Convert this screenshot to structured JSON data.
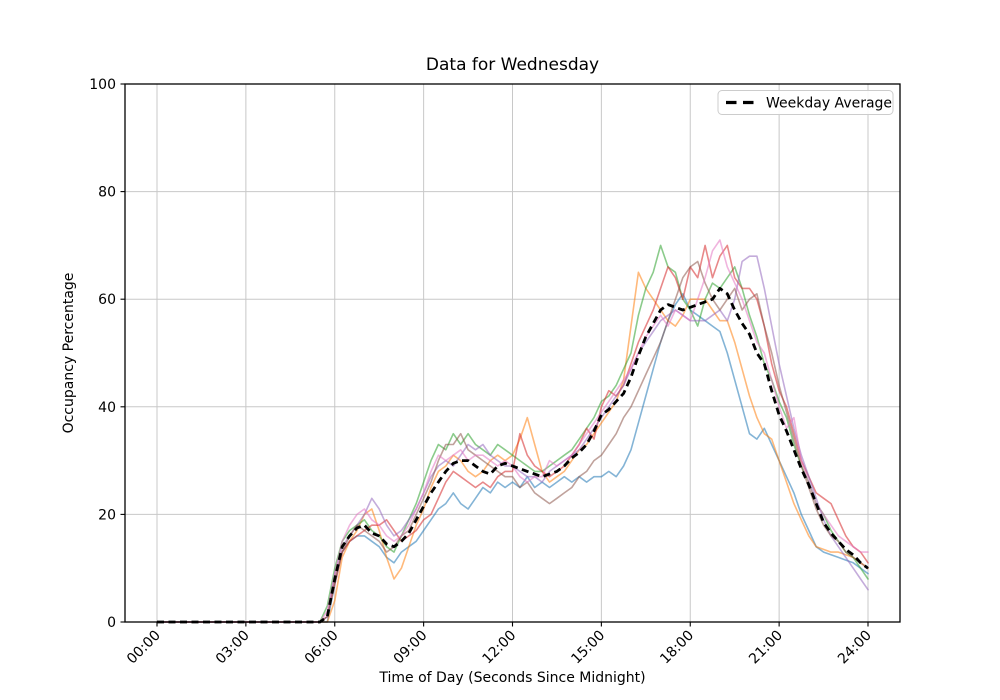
{
  "chart_data": {
    "type": "line",
    "title": "Data for Wednesday",
    "xlabel": "Time of Day (Seconds Since Midnight)",
    "ylabel": "Occupancy Percentage",
    "grid": true,
    "legend_position": "upper right",
    "xlim_hours": [
      0,
      24
    ],
    "ylim": [
      0,
      100
    ],
    "xtick_hours": [
      0,
      3,
      6,
      9,
      12,
      15,
      18,
      21,
      24
    ],
    "xtick_labels": [
      "00:00",
      "03:00",
      "06:00",
      "09:00",
      "12:00",
      "15:00",
      "18:00",
      "21:00",
      "24:00"
    ],
    "ytick_values": [
      0,
      20,
      40,
      60,
      80,
      100
    ],
    "ytick_labels": [
      "0",
      "20",
      "40",
      "60",
      "80",
      "100"
    ],
    "x_start_hours": 0,
    "x_step_hours": 0.25,
    "series_alpha": 0.55,
    "series": [
      {
        "id": "wednesday-blue",
        "color": "#1f77b4",
        "values": [
          0,
          0,
          0,
          0,
          0,
          0,
          0,
          0,
          0,
          0,
          0,
          0,
          0,
          0,
          0,
          0,
          0,
          0,
          0,
          0,
          0,
          0,
          0,
          0,
          7,
          13,
          15,
          16,
          16,
          15,
          14,
          12,
          11,
          13,
          14,
          15,
          17,
          19,
          21,
          22,
          24,
          22,
          21,
          23,
          25,
          24,
          26,
          25,
          26,
          25,
          27,
          25,
          26,
          25,
          26,
          27,
          26,
          27,
          26,
          27,
          27,
          28,
          27,
          29,
          32,
          37,
          42,
          47,
          52,
          56,
          59,
          61,
          58,
          57,
          56,
          55,
          54,
          50,
          45,
          40,
          35,
          34,
          36,
          33,
          30,
          27,
          24,
          20,
          17,
          14,
          13,
          12.5,
          12,
          11.5,
          11,
          10,
          9
        ]
      },
      {
        "id": "wednesday-orange",
        "color": "#ff7f0e",
        "values": [
          0,
          0,
          0,
          0,
          0,
          0,
          0,
          0,
          0,
          0,
          0,
          0,
          0,
          0,
          0,
          0,
          0,
          0,
          0,
          0,
          0,
          0,
          0,
          0,
          4,
          12,
          15,
          17,
          20,
          21,
          17,
          12,
          8,
          10,
          14,
          18,
          21,
          25,
          28,
          29,
          31,
          30,
          28,
          27,
          28,
          30,
          31,
          30,
          31,
          34,
          38,
          33,
          28,
          26,
          27,
          28,
          30,
          32,
          33,
          35,
          37,
          39,
          41,
          45,
          55,
          65,
          62,
          60,
          58,
          56,
          55,
          57,
          60,
          60,
          60,
          58,
          56,
          56,
          52,
          47,
          42,
          38,
          35,
          34,
          30,
          26,
          22,
          19,
          16,
          14,
          13.5,
          13,
          13,
          12.5,
          12,
          11,
          10
        ]
      },
      {
        "id": "wednesday-green",
        "color": "#2ca02c",
        "values": [
          0,
          0,
          0,
          0,
          0,
          0,
          0,
          0,
          0,
          0,
          0,
          0,
          0,
          0,
          0,
          0,
          0,
          0,
          0,
          0,
          0,
          0,
          0,
          3,
          10,
          15,
          17,
          18,
          19,
          17,
          16,
          14,
          13,
          16,
          19,
          22,
          26,
          30,
          33,
          32,
          35,
          33,
          35,
          33,
          32,
          31,
          33,
          32,
          31,
          30,
          29,
          28,
          28,
          29,
          30,
          31,
          32,
          34,
          36,
          38,
          41,
          42,
          44,
          47,
          50,
          57,
          62,
          65,
          70,
          66,
          65,
          60,
          58,
          55,
          60,
          63,
          62,
          64,
          66,
          62,
          57,
          53,
          48,
          45,
          41,
          38,
          33,
          29,
          26,
          22,
          20,
          17,
          15,
          13,
          12,
          10,
          8
        ]
      },
      {
        "id": "wednesday-red",
        "color": "#d62728",
        "values": [
          0,
          0,
          0,
          0,
          0,
          0,
          0,
          0,
          0,
          0,
          0,
          0,
          0,
          0,
          0,
          0,
          0,
          0,
          0,
          0,
          0,
          0,
          0,
          1,
          7,
          13,
          15,
          16,
          17,
          18,
          18,
          19,
          17,
          15,
          16,
          17,
          19,
          20,
          23,
          26,
          28,
          27,
          26,
          25,
          26,
          25,
          27,
          28,
          28,
          35,
          31,
          29,
          28,
          27,
          28,
          29,
          31,
          33,
          36,
          34,
          40,
          43,
          42,
          44,
          48,
          52,
          55,
          58,
          62,
          66,
          64,
          60,
          66,
          64,
          70,
          64,
          68,
          70,
          64,
          62,
          62,
          60,
          55,
          48,
          43,
          40,
          35,
          30,
          27,
          24,
          23,
          22,
          19,
          16,
          14,
          13,
          11
        ]
      },
      {
        "id": "wednesday-purple",
        "color": "#9467bd",
        "values": [
          0,
          0,
          0,
          0,
          0,
          0,
          0,
          0,
          0,
          0,
          0,
          0,
          0,
          0,
          0,
          0,
          0,
          0,
          0,
          0,
          0,
          0,
          0,
          1,
          9,
          14,
          16,
          18,
          20,
          23,
          21,
          18,
          16,
          17,
          19,
          21,
          24,
          27,
          29,
          30,
          29,
          31,
          33,
          32,
          33,
          31,
          30,
          29,
          29,
          28,
          27,
          27,
          26,
          28,
          29,
          30,
          31,
          32,
          34,
          36,
          38,
          40,
          42,
          44,
          47,
          50,
          52,
          54,
          56,
          57,
          58,
          57,
          56,
          56,
          56,
          57,
          58,
          56,
          60,
          67,
          68,
          68,
          62,
          55,
          48,
          42,
          36,
          31,
          27,
          23,
          19,
          16,
          14,
          12,
          10,
          8,
          6
        ]
      },
      {
        "id": "wednesday-brown",
        "color": "#8c564b",
        "values": [
          0,
          0,
          0,
          0,
          0,
          0,
          0,
          0,
          0,
          0,
          0,
          0,
          0,
          0,
          0,
          0,
          0,
          0,
          0,
          0,
          0,
          0,
          0,
          1,
          8,
          13,
          16,
          18,
          17,
          16,
          15,
          13,
          14,
          16,
          17,
          20,
          23,
          26,
          30,
          33,
          33,
          35,
          32,
          31,
          30,
          29,
          28,
          27,
          27,
          25,
          26,
          24,
          23,
          22,
          23,
          24,
          25,
          27,
          28,
          30,
          31,
          33,
          35,
          38,
          40,
          43,
          46,
          49,
          52,
          56,
          60,
          64,
          66,
          67,
          63,
          60,
          58,
          60,
          62,
          58,
          60,
          61,
          55,
          50,
          44,
          39,
          34,
          29,
          25,
          21,
          18,
          16,
          15,
          13,
          12,
          11,
          10
        ]
      },
      {
        "id": "wednesday-pink",
        "color": "#e377c2",
        "values": [
          0,
          0,
          0,
          0,
          0,
          0,
          0,
          0,
          0,
          0,
          0,
          0,
          0,
          0,
          0,
          0,
          0,
          0,
          0,
          0,
          0,
          0,
          0,
          2,
          9,
          15,
          18,
          20,
          21,
          19,
          18,
          16,
          15,
          16,
          18,
          21,
          24,
          28,
          31,
          30,
          31,
          32,
          30,
          31,
          31,
          30,
          29,
          30,
          29,
          27,
          26,
          27,
          27,
          30,
          29,
          30,
          31,
          33,
          35,
          37,
          39,
          41,
          43,
          45,
          47,
          50,
          53,
          55,
          57,
          55,
          58,
          57,
          56,
          60,
          64,
          69,
          71,
          66,
          63,
          60,
          56,
          52,
          50,
          45,
          40,
          36,
          38,
          30,
          26,
          22,
          20,
          18,
          16,
          15,
          14,
          13,
          13
        ]
      }
    ],
    "average": {
      "label": "Weekday Average",
      "color": "#000000",
      "dash": [
        7,
        4.5
      ],
      "values": [
        0,
        0,
        0,
        0,
        0,
        0,
        0,
        0,
        0,
        0,
        0,
        0,
        0,
        0,
        0,
        0,
        0,
        0,
        0,
        0,
        0,
        0,
        0,
        1,
        8,
        14,
        16,
        17.5,
        18,
        16.5,
        16,
        14.5,
        14,
        15,
        16.5,
        19,
        21.5,
        24,
        26,
        28,
        29.5,
        30,
        30,
        29,
        28,
        27.5,
        29,
        29.5,
        29,
        28.5,
        28,
        27.5,
        27,
        27.5,
        28,
        29,
        30.5,
        31.5,
        33,
        35.5,
        38.5,
        39.5,
        41,
        42.5,
        45.5,
        49.5,
        53,
        55.5,
        58,
        59,
        58.5,
        58,
        58.5,
        59,
        59.5,
        60,
        62,
        61,
        58,
        55.5,
        53.5,
        50,
        48,
        43,
        38.5,
        35.5,
        32,
        28.5,
        25.5,
        22,
        18.5,
        16.5,
        15,
        13.5,
        12.5,
        11,
        10
      ]
    },
    "colors": {
      "grid": "#c8c8c8",
      "spine": "#000000",
      "background": "#ffffff",
      "legend_border": "#cccccc"
    }
  }
}
